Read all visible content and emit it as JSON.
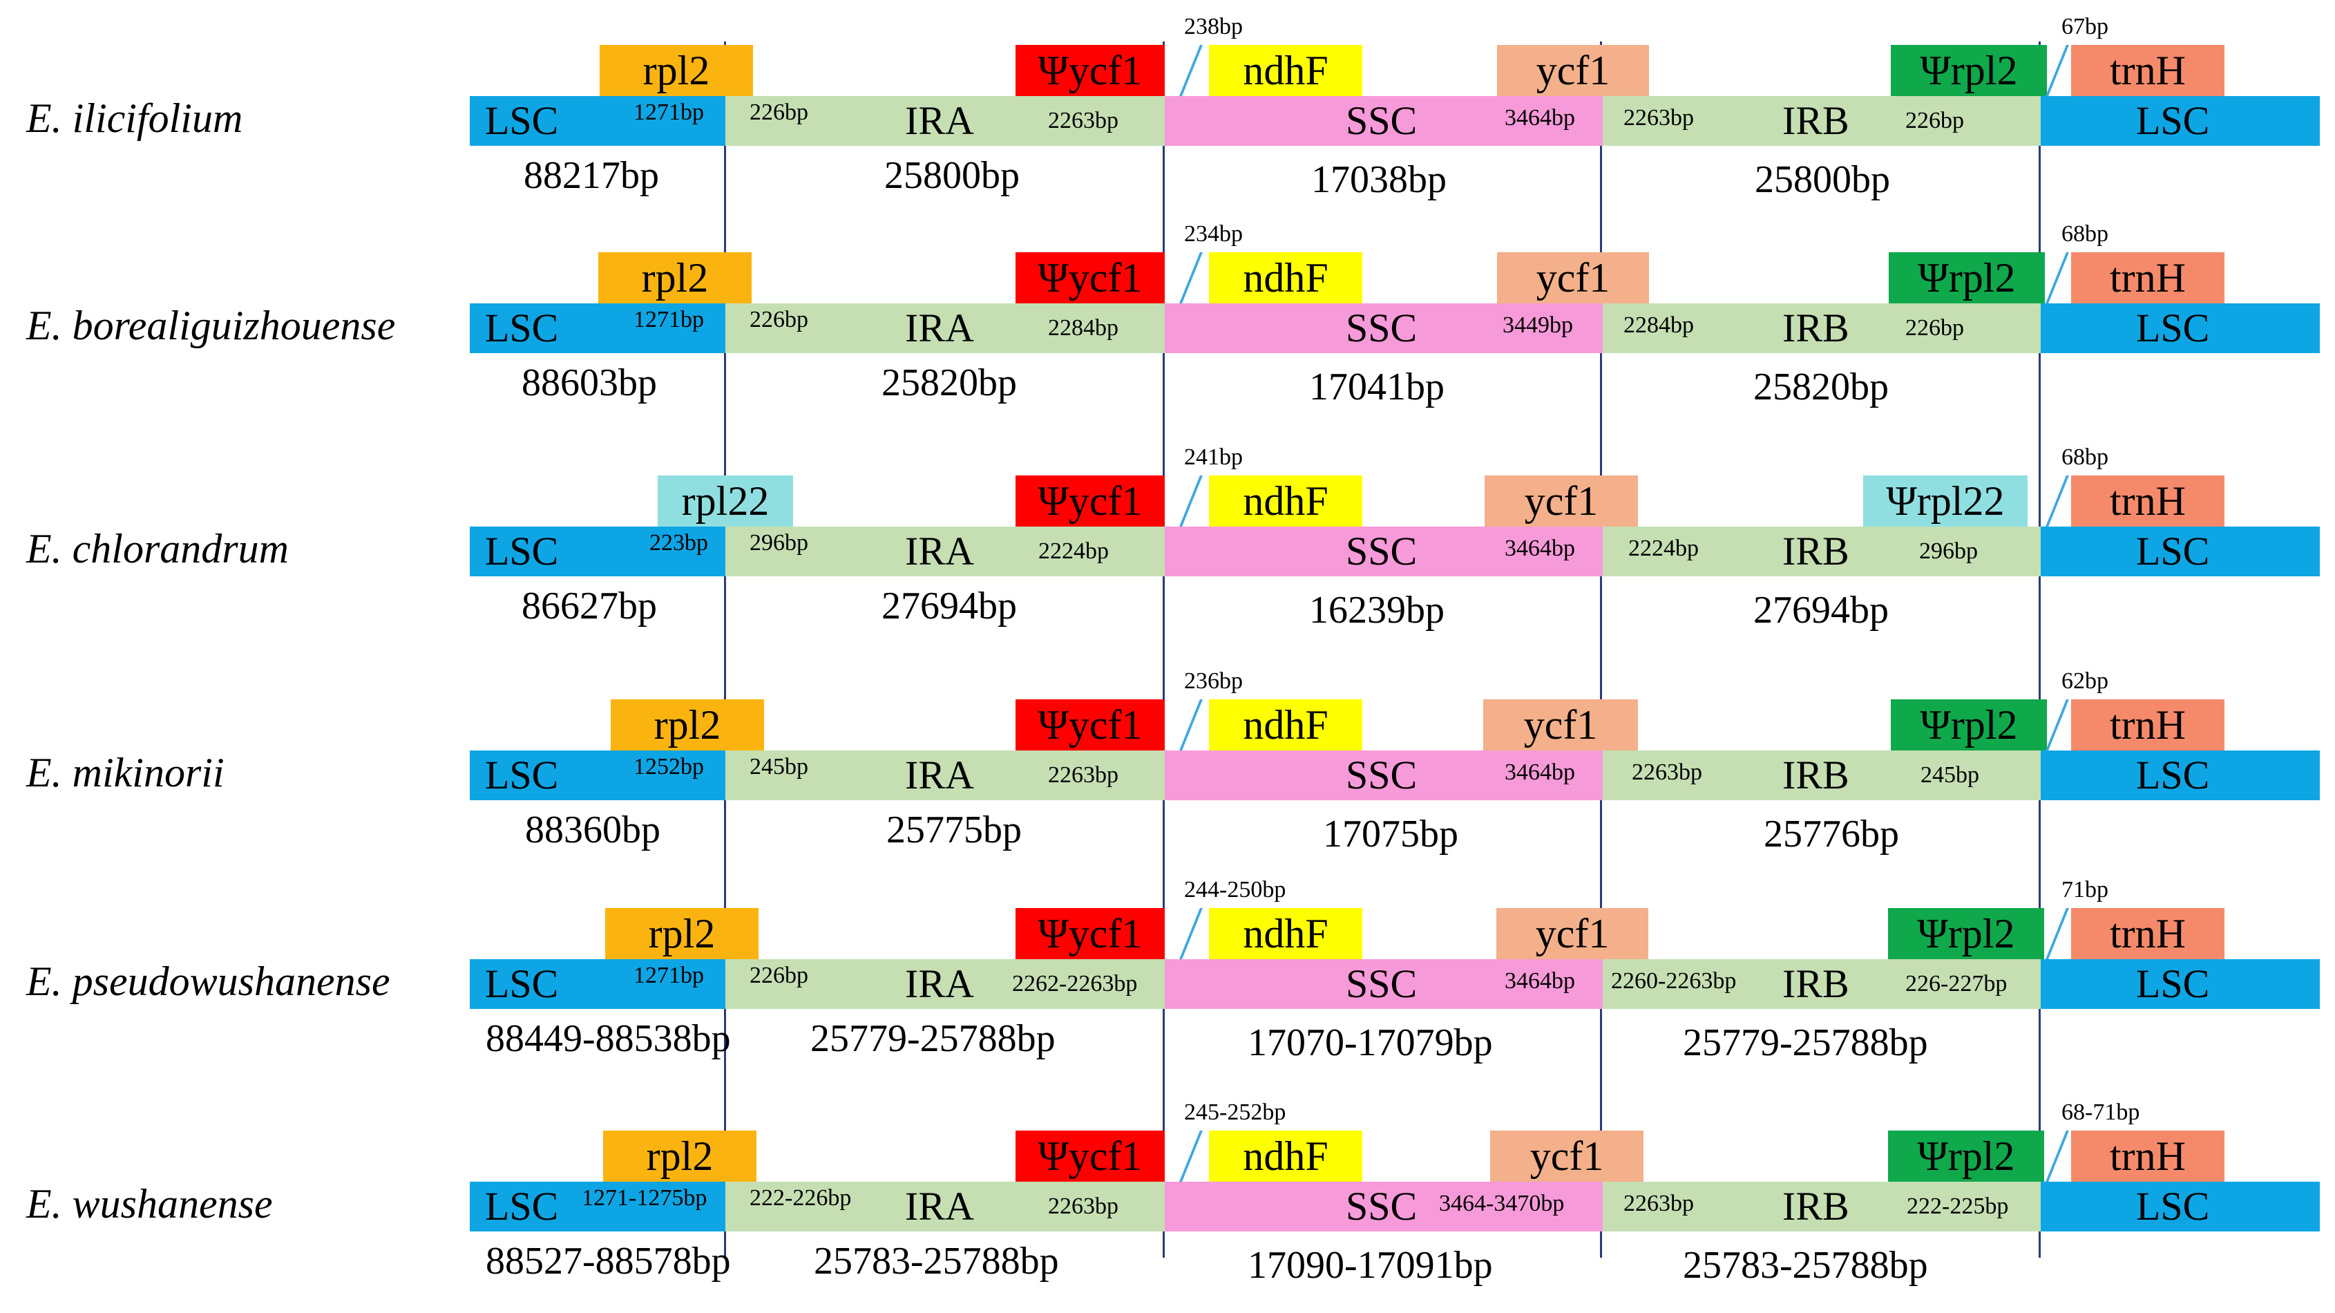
{
  "colors": {
    "LSC": "#0ea5e4",
    "IR": "#c5dfb3",
    "SSC": "#f79ad9",
    "rpl2": "#fbb40f",
    "rpl22": "#8fdfe0",
    "Psi_ycf1": "#ff0000",
    "ndhF": "#ffff00",
    "ycf1": "#f3b08a",
    "Psi_rpl2": "#0fa84b",
    "Psi_rpl22": "#8fdfe0",
    "trnH": "#f58a6a",
    "boundary_line": "#2b3a7a"
  },
  "region_labels": {
    "lsc": "LSC",
    "ira": "IRA",
    "ssc": "SSC",
    "irb": "IRB"
  },
  "rows": [
    {
      "species": "E. ilicifolium",
      "g1": "rpl2",
      "g2": "Ψycf1",
      "g3": "ndhF",
      "g4": "ycf1",
      "g5": "Ψrpl2",
      "g6": "trnH",
      "ndh_dist": "238bp",
      "trn_dist": "67bp",
      "j1": "1271bp",
      "j2": "226bp",
      "j3": "2263bp",
      "j4": "3464bp",
      "j5": "2263bp",
      "j6": "226bp",
      "t_lsc": "88217bp",
      "t_ira": "25800bp",
      "t_ssc": "17038bp",
      "t_irb": "25800bp"
    },
    {
      "species": "E. borealiguizhouense",
      "g1": "rpl2",
      "g2": "Ψycf1",
      "g3": "ndhF",
      "g4": "ycf1",
      "g5": "Ψrpl2",
      "g6": "trnH",
      "ndh_dist": "234bp",
      "trn_dist": "68bp",
      "j1": "1271bp",
      "j2": "226bp",
      "j3": "2284bp",
      "j4": "3449bp",
      "j5": "2284bp",
      "j6": "226bp",
      "t_lsc": "88603bp",
      "t_ira": "25820bp",
      "t_ssc": "17041bp",
      "t_irb": "25820bp"
    },
    {
      "species": "E. chlorandrum",
      "g1": "rpl22",
      "g2": "Ψycf1",
      "g3": "ndhF",
      "g4": "ycf1",
      "g5": "Ψrpl22",
      "g6": "trnH",
      "ndh_dist": "241bp",
      "trn_dist": "68bp",
      "j1": "223bp",
      "j2": "296bp",
      "j3": "2224bp",
      "j4": "3464bp",
      "j5": "2224bp",
      "j6": "296bp",
      "t_lsc": "86627bp",
      "t_ira": "27694bp",
      "t_ssc": "16239bp",
      "t_irb": "27694bp"
    },
    {
      "species": "E. mikinorii",
      "g1": "rpl2",
      "g2": "Ψycf1",
      "g3": "ndhF",
      "g4": "ycf1",
      "g5": "Ψrpl2",
      "g6": "trnH",
      "ndh_dist": "236bp",
      "trn_dist": "62bp",
      "j1": "1252bp",
      "j2": "245bp",
      "j3": "2263bp",
      "j4": "3464bp",
      "j5": "2263bp",
      "j6": "245bp",
      "t_lsc": "88360bp",
      "t_ira": "25775bp",
      "t_ssc": "17075bp",
      "t_irb": "25776bp"
    },
    {
      "species": "E. pseudowushanense",
      "g1": "rpl2",
      "g2": "Ψycf1",
      "g3": "ndhF",
      "g4": "ycf1",
      "g5": "Ψrpl2",
      "g6": "trnH",
      "ndh_dist": "244-250bp",
      "trn_dist": "71bp",
      "j1": "1271bp",
      "j2": "226bp",
      "j3": "2262-2263bp",
      "j4": "3464bp",
      "j5": "2260-2263bp",
      "j6": "226-227bp",
      "t_lsc": "88449-88538bp",
      "t_ira": "25779-25788bp",
      "t_ssc": "17070-17079bp",
      "t_irb": "25779-25788bp"
    },
    {
      "species": "E. wushanense",
      "g1": "rpl2",
      "g2": "Ψycf1",
      "g3": "ndhF",
      "g4": "ycf1",
      "g5": "Ψrpl2",
      "g6": "trnH",
      "ndh_dist": "245-252bp",
      "trn_dist": "68-71bp",
      "j1": "1271-1275bp",
      "j2": "222-226bp",
      "j3": "2263bp",
      "j4": "3464-3470bp",
      "j5": "2263bp",
      "j6": "222-225bp",
      "t_lsc": "88527-88578bp",
      "t_ira": "25783-25788bp",
      "t_ssc": "17090-17091bp",
      "t_irb": "25783-25788bp"
    }
  ]
}
